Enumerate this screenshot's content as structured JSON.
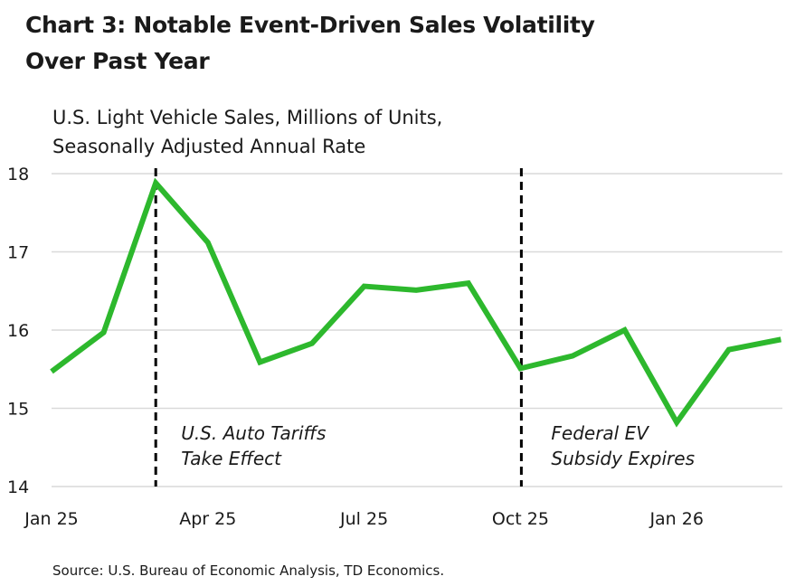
{
  "title_lines": [
    "Chart 3: Notable Event-Driven Sales Volatility",
    "Over Past Year"
  ],
  "subtitle_lines": [
    "U.S. Light Vehicle Sales, Millions of Units,",
    "Seasonally Adjusted Annual Rate"
  ],
  "source": "Source: U.S. Bureau of Economic Analysis, TD Economics.",
  "colors": {
    "line": "#2DB82D",
    "grid": "#d9d9d9",
    "event": "#000000"
  },
  "chart_data": {
    "type": "line",
    "title": "Chart 3: Notable Event-Driven Sales Volatility Over Past Year",
    "ylabel": "U.S. Light Vehicle Sales, Millions of Units, Seasonally Adjusted Annual Rate",
    "xlabel": "",
    "ylim": [
      14,
      18
    ],
    "yticks": [
      14,
      15,
      16,
      17,
      18
    ],
    "x": [
      "Jan 25",
      "Feb 25",
      "Mar 25",
      "Apr 25",
      "May 25",
      "Jun 25",
      "Jul 25",
      "Aug 25",
      "Sep 25",
      "Oct 25",
      "Nov 25",
      "Dec 25",
      "Jan 26",
      "Feb 26",
      "Mar 26"
    ],
    "xtick_labels": [
      {
        "index": 0,
        "label": "Jan 25"
      },
      {
        "index": 3,
        "label": "Apr 25"
      },
      {
        "index": 6,
        "label": "Jul 25"
      },
      {
        "index": 9,
        "label": "Oct 25"
      },
      {
        "index": 12,
        "label": "Jan 26"
      }
    ],
    "series": [
      {
        "values": [
          15.47,
          15.97,
          17.88,
          17.12,
          15.59,
          15.83,
          16.56,
          16.51,
          16.6,
          15.51,
          15.67,
          16.0,
          14.82,
          15.75,
          15.88
        ]
      }
    ],
    "grid": "horizontal",
    "legend": "none",
    "annotations": [
      {
        "index": 2,
        "lines": [
          "U.S. Auto Tariffs",
          "Take Effect"
        ]
      },
      {
        "index": 9,
        "lines": [
          "Federal EV",
          "Subsidy Expires"
        ]
      }
    ]
  }
}
